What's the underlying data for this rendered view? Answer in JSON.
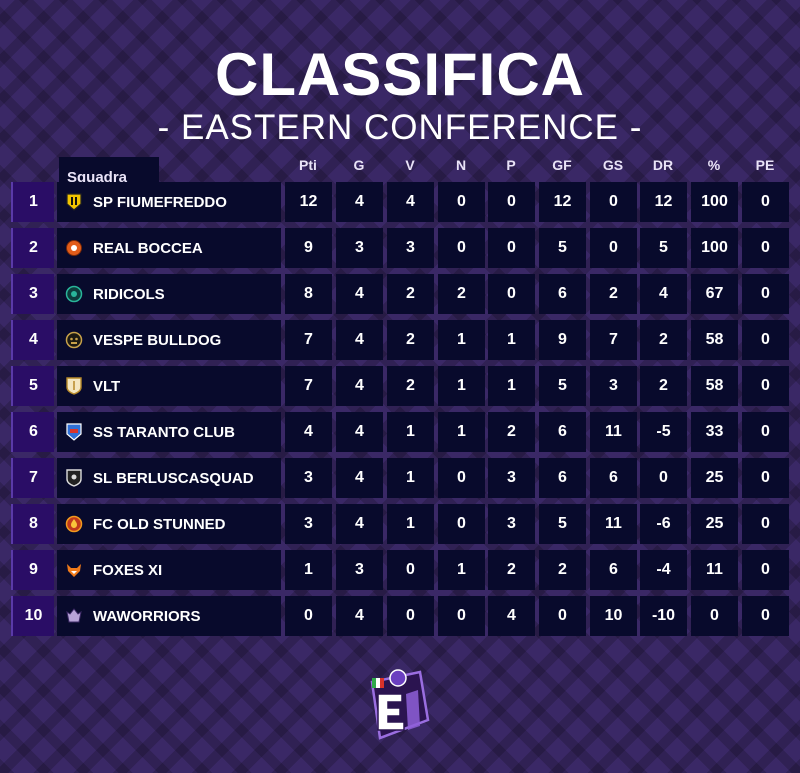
{
  "title": "CLASSIFICA",
  "subtitle": "- EASTERN CONFERENCE -",
  "header": {
    "team": "Squadra",
    "pti": "Pti",
    "g": "G",
    "v": "V",
    "n": "N",
    "p": "P",
    "gf": "GF",
    "gs": "GS",
    "dr": "DR",
    "pct": "%",
    "pe": "PE"
  },
  "rows": [
    {
      "rank": "1",
      "team": "SP FIUMEFREDDO",
      "logo": "shield-yellow-icon",
      "pti": "12",
      "g": "4",
      "v": "4",
      "n": "0",
      "p": "0",
      "gf": "12",
      "gs": "0",
      "dr": "12",
      "pct": "100",
      "pe": "0"
    },
    {
      "rank": "2",
      "team": "REAL BOCCEA",
      "logo": "ball-crest-icon",
      "pti": "9",
      "g": "3",
      "v": "3",
      "n": "0",
      "p": "0",
      "gf": "5",
      "gs": "0",
      "dr": "5",
      "pct": "100",
      "pe": "0"
    },
    {
      "rank": "3",
      "team": "RIDICOLS",
      "logo": "round-crest-icon",
      "pti": "8",
      "g": "4",
      "v": "2",
      "n": "2",
      "p": "0",
      "gf": "6",
      "gs": "2",
      "dr": "4",
      "pct": "67",
      "pe": "0"
    },
    {
      "rank": "4",
      "team": "VESPE BULLDOG",
      "logo": "bulldog-icon",
      "pti": "7",
      "g": "4",
      "v": "2",
      "n": "1",
      "p": "1",
      "gf": "9",
      "gs": "7",
      "dr": "2",
      "pct": "58",
      "pe": "0"
    },
    {
      "rank": "5",
      "team": "VLT",
      "logo": "shield-gold-icon",
      "pti": "7",
      "g": "4",
      "v": "2",
      "n": "1",
      "p": "1",
      "gf": "5",
      "gs": "3",
      "dr": "2",
      "pct": "58",
      "pe": "0"
    },
    {
      "rank": "6",
      "team": "SS TARANTO CLUB",
      "logo": "shield-blue-icon",
      "pti": "4",
      "g": "4",
      "v": "1",
      "n": "1",
      "p": "2",
      "gf": "6",
      "gs": "11",
      "dr": "-5",
      "pct": "33",
      "pe": "0"
    },
    {
      "rank": "7",
      "team": "SL BERLUSCASQUAD",
      "logo": "shield-dark-icon",
      "pti": "3",
      "g": "4",
      "v": "1",
      "n": "0",
      "p": "3",
      "gf": "6",
      "gs": "6",
      "dr": "0",
      "pct": "25",
      "pe": "0"
    },
    {
      "rank": "8",
      "team": "FC OLD STUNNED",
      "logo": "flame-crest-icon",
      "pti": "3",
      "g": "4",
      "v": "1",
      "n": "0",
      "p": "3",
      "gf": "5",
      "gs": "11",
      "dr": "-6",
      "pct": "25",
      "pe": "0"
    },
    {
      "rank": "9",
      "team": "FOXES XI",
      "logo": "fox-icon",
      "pti": "1",
      "g": "3",
      "v": "0",
      "n": "1",
      "p": "2",
      "gf": "2",
      "gs": "6",
      "dr": "-4",
      "pct": "11",
      "pe": "0"
    },
    {
      "rank": "10",
      "team": "WAWORRIORS",
      "logo": "warrior-crest-icon",
      "pti": "0",
      "g": "4",
      "v": "0",
      "n": "0",
      "p": "4",
      "gf": "0",
      "gs": "10",
      "dr": "-10",
      "pct": "0",
      "pe": "0"
    }
  ],
  "brand_logo": "e-league-logo-icon"
}
